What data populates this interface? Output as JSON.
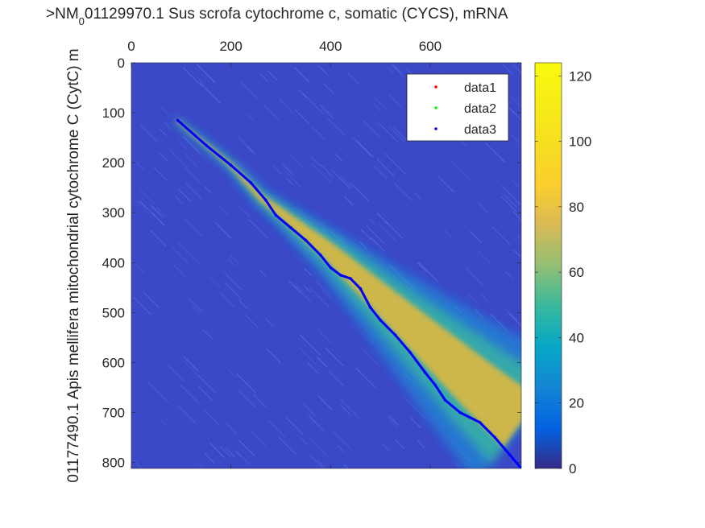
{
  "figure": {
    "title_prefix": ">NM",
    "title_subscript": "0",
    "title_rest": "01129970.1 Sus scrofa cytochrome c, somatic (CYCS), mRNA",
    "ylabel": "01177490.1 Apis mellifera mitochondrial cytochrome C (CytC) m"
  },
  "chart_data": {
    "type": "heatmap",
    "x_range": [
      0,
      783
    ],
    "y_range": [
      0,
      812
    ],
    "y_direction": "reverse",
    "x_axis_location": "top",
    "x_ticks": [
      0,
      200,
      400,
      600
    ],
    "y_ticks": [
      0,
      100,
      200,
      300,
      400,
      500,
      600,
      700,
      800
    ],
    "grid": false,
    "colormap": "parula",
    "colorbar": {
      "range": [
        0,
        124
      ],
      "ticks": [
        0,
        20,
        40,
        60,
        80,
        100,
        120
      ]
    },
    "legend": {
      "location": "top-right",
      "entries": [
        {
          "label": "data1",
          "color": "#ff0000"
        },
        {
          "label": "data2",
          "color": "#00ff00"
        },
        {
          "label": "data3",
          "color": "#0000ff"
        }
      ]
    },
    "series": [
      {
        "name": "data1",
        "marker": "point",
        "color": "#ff0000",
        "points": []
      },
      {
        "name": "data2",
        "marker": "point",
        "color": "#00ff00",
        "points": []
      },
      {
        "name": "data3",
        "marker": "point",
        "color": "#0000ff",
        "points": [
          [
            93,
            115
          ],
          [
            150,
            165
          ],
          [
            200,
            205
          ],
          [
            240,
            240
          ],
          [
            270,
            275
          ],
          [
            290,
            305
          ],
          [
            320,
            330
          ],
          [
            350,
            355
          ],
          [
            380,
            385
          ],
          [
            400,
            410
          ],
          [
            420,
            425
          ],
          [
            440,
            432
          ],
          [
            460,
            452
          ],
          [
            480,
            490
          ],
          [
            500,
            515
          ],
          [
            530,
            545
          ],
          [
            560,
            580
          ],
          [
            590,
            620
          ],
          [
            610,
            645
          ],
          [
            630,
            675
          ],
          [
            660,
            700
          ],
          [
            700,
            720
          ],
          [
            730,
            750
          ],
          [
            760,
            785
          ],
          [
            783,
            812
          ]
        ]
      }
    ],
    "band": {
      "description_points": [
        [
          90,
          115
        ],
        [
          200,
          205
        ],
        [
          260,
          270
        ],
        [
          300,
          300
        ],
        [
          400,
          380
        ],
        [
          500,
          470
        ],
        [
          600,
          560
        ],
        [
          700,
          650
        ],
        [
          783,
          720
        ]
      ],
      "half_width": [
        4,
        8,
        14,
        20,
        38,
        60,
        85,
        110,
        130
      ]
    }
  }
}
